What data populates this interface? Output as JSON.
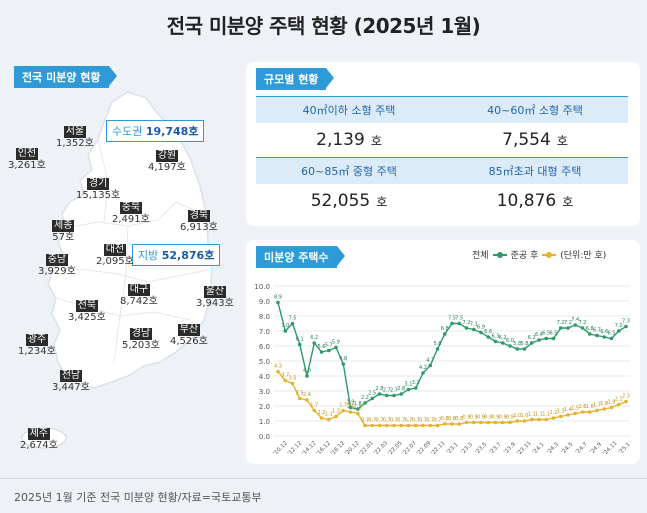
{
  "page_title": "전국 미분양 주택 현황  (2025년 1월)",
  "map_section": {
    "tag": "전국 미분양 현황",
    "callouts": [
      {
        "key": "수도권",
        "value": "19,748호"
      },
      {
        "key": "지방",
        "value": "52,876호"
      }
    ],
    "regions": [
      {
        "name": "서울",
        "value": "1,352호"
      },
      {
        "name": "인천",
        "value": "3,261호"
      },
      {
        "name": "강원",
        "value": "4,197호"
      },
      {
        "name": "경기",
        "value": "15,135호"
      },
      {
        "name": "충북",
        "value": "2,491호"
      },
      {
        "name": "세종",
        "value": "57호"
      },
      {
        "name": "경북",
        "value": "6,913호"
      },
      {
        "name": "충남",
        "value": "3,929호"
      },
      {
        "name": "대전",
        "value": "2,095호"
      },
      {
        "name": "대구",
        "value": "8,742호"
      },
      {
        "name": "울산",
        "value": "3,943호"
      },
      {
        "name": "전북",
        "value": "3,425호"
      },
      {
        "name": "경남",
        "value": "5,203호"
      },
      {
        "name": "부산",
        "value": "4,526호"
      },
      {
        "name": "광주",
        "value": "1,234호"
      },
      {
        "name": "전남",
        "value": "3,447호"
      },
      {
        "name": "제주",
        "value": "2,674호"
      }
    ]
  },
  "size_section": {
    "tag": "규모별 현황",
    "unit": "호",
    "cells": [
      {
        "label": "40㎡이하 소형 주택",
        "value": "2,139"
      },
      {
        "label": "40~60㎡ 소형 주택",
        "value": "7,554"
      },
      {
        "label": "60~85㎡ 중형 주택",
        "value": "52,055"
      },
      {
        "label": "85㎡초과 대형 주택",
        "value": "10,876"
      }
    ]
  },
  "chart_section": {
    "tag": "미분양 주택수",
    "legend": {
      "total": "전체",
      "completed": "준공 후",
      "unit": "(단위:만 호)"
    }
  },
  "chart_data": {
    "type": "line",
    "ylim": [
      0,
      10
    ],
    "yticks": [
      "0.0",
      "1.0",
      "2.0",
      "3.0",
      "4.0",
      "5.0",
      "6.0",
      "7.0",
      "8.0",
      "9.0",
      "10.0"
    ],
    "xtick_labels": [
      "'10.12",
      "'12.12",
      "'14.12",
      "'16.12",
      "'18.12",
      "'20.12",
      "'22.01",
      "'22.03",
      "'22.05",
      "'22.07",
      "'22.09",
      "'22.11",
      "'23.1",
      "'23.3",
      "'23.5",
      "'23.7",
      "'23.9",
      "'23.11",
      "'24.1",
      "'24.3",
      "'24.5",
      "'24.7",
      "'24.9",
      "'24.11",
      "'25.1"
    ],
    "series": [
      {
        "name": "전체",
        "color": "#2e9a6a",
        "values": [
          8.9,
          7.0,
          7.5,
          6.1,
          4.0,
          6.2,
          5.6,
          5.7,
          5.9,
          4.8,
          1.9,
          1.8,
          2.2,
          2.5,
          2.8,
          2.7,
          2.7,
          2.8,
          3.1,
          3.2,
          4.2,
          4.7,
          5.8,
          6.8,
          7.5,
          7.5,
          7.2,
          7.1,
          6.9,
          6.6,
          6.3,
          6.2,
          6.0,
          5.8,
          5.8,
          6.2,
          6.4,
          6.5,
          6.5,
          7.2,
          7.2,
          7.4,
          7.2,
          6.8,
          6.7,
          6.6,
          6.5,
          7.0,
          7.3
        ]
      },
      {
        "name": "준공 후",
        "color": "#e7b12c",
        "values": [
          4.3,
          3.7,
          3.5,
          2.5,
          2.4,
          1.7,
          1.2,
          1.1,
          1.3,
          1.7,
          1.6,
          1.5,
          0.7,
          0.7,
          0.7,
          0.7,
          0.7,
          0.7,
          0.7,
          0.7,
          0.7,
          0.7,
          0.7,
          0.8,
          0.8,
          0.8,
          0.9,
          0.9,
          0.9,
          0.9,
          0.9,
          0.9,
          0.9,
          1.0,
          1.0,
          1.1,
          1.1,
          1.1,
          1.2,
          1.3,
          1.4,
          1.5,
          1.6,
          1.6,
          1.7,
          1.8,
          1.9,
          2.1,
          2.3
        ]
      }
    ]
  },
  "footer": {
    "text": "2025년 1월 기준 전국 미분양 현황/자료=국토교통부"
  }
}
